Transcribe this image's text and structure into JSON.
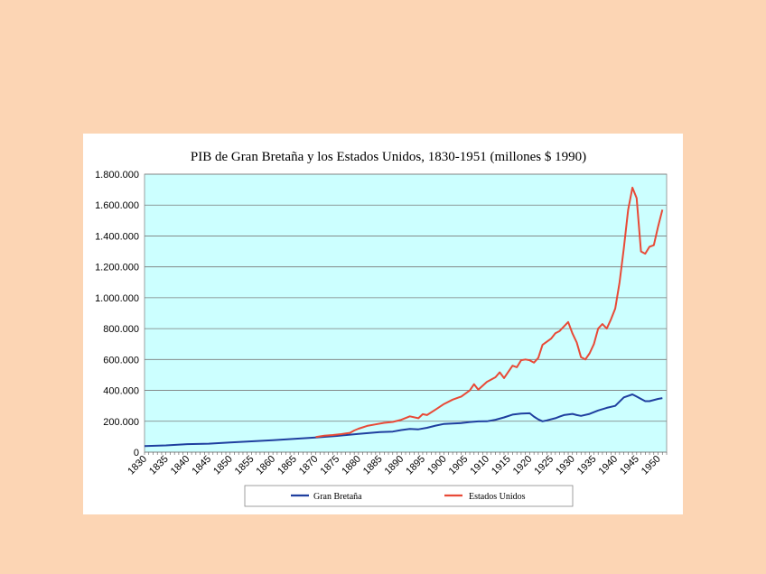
{
  "chart_data": {
    "type": "line",
    "title": "PIB de Gran Bretaña y los Estados Unidos, 1830-1951 (millones $ 1990)",
    "xlabel": "",
    "ylabel": "",
    "xlim": [
      1830,
      1952
    ],
    "ylim": [
      0,
      1800000
    ],
    "y_ticks": [
      0,
      200000,
      400000,
      600000,
      800000,
      1000000,
      1200000,
      1400000,
      1600000,
      1800000
    ],
    "y_tick_labels": [
      "0",
      "200.000",
      "400.000",
      "600.000",
      "800.000",
      "1.000.000",
      "1.200.000",
      "1.400.000",
      "1.600.000",
      "1.800.000"
    ],
    "x_tick_labels": [
      "1830",
      "1835",
      "1840",
      "1845",
      "1850",
      "1855",
      "1860",
      "1865",
      "1870",
      "1875",
      "1880",
      "1885",
      "1890",
      "1895",
      "1900",
      "1905",
      "1910",
      "1915",
      "1920",
      "1925",
      "1930",
      "1935",
      "1940",
      "1945",
      "1950"
    ],
    "grid": true,
    "plot_background": "#ccffff",
    "legend_position": "bottom",
    "series": [
      {
        "name": "Gran Bretaña",
        "color": "#1f3f9f",
        "x": [
          1830,
          1835,
          1840,
          1845,
          1850,
          1855,
          1860,
          1865,
          1870,
          1875,
          1880,
          1885,
          1888,
          1890,
          1892,
          1894,
          1896,
          1898,
          1900,
          1902,
          1904,
          1906,
          1908,
          1910,
          1912,
          1914,
          1916,
          1918,
          1920,
          1921,
          1922,
          1923,
          1924,
          1926,
          1927,
          1928,
          1930,
          1931,
          1932,
          1934,
          1936,
          1938,
          1940,
          1942,
          1944,
          1945,
          1946,
          1947,
          1948,
          1950,
          1951
        ],
        "values": [
          40000,
          44000,
          52000,
          55000,
          63000,
          70000,
          78000,
          86000,
          95000,
          105000,
          118000,
          130000,
          133000,
          143000,
          150000,
          148000,
          158000,
          172000,
          183000,
          185000,
          188000,
          195000,
          199000,
          200000,
          210000,
          225000,
          243000,
          250000,
          252000,
          230000,
          212000,
          200000,
          206000,
          220000,
          230000,
          240000,
          248000,
          240000,
          235000,
          248000,
          270000,
          287000,
          300000,
          355000,
          374000,
          360000,
          345000,
          330000,
          330000,
          345000,
          350000
        ]
      },
      {
        "name": "Estados Unidos",
        "color": "#e84a37",
        "x": [
          1870,
          1872,
          1874,
          1876,
          1878,
          1879,
          1880,
          1882,
          1884,
          1886,
          1888,
          1890,
          1892,
          1894,
          1895,
          1896,
          1898,
          1900,
          1902,
          1904,
          1906,
          1907,
          1908,
          1910,
          1912,
          1913,
          1914,
          1916,
          1917,
          1918,
          1919,
          1920,
          1921,
          1922,
          1923,
          1925,
          1926,
          1927,
          1929,
          1930,
          1931,
          1932,
          1933,
          1934,
          1935,
          1936,
          1937,
          1938,
          1939,
          1940,
          1941,
          1942,
          1943,
          1944,
          1945,
          1946,
          1947,
          1948,
          1949,
          1950,
          1951
        ],
        "values": [
          98000,
          107000,
          111000,
          117000,
          125000,
          140000,
          152000,
          170000,
          180000,
          190000,
          196000,
          210000,
          232000,
          220000,
          246000,
          240000,
          276000,
          312000,
          340000,
          360000,
          400000,
          440000,
          405000,
          455000,
          485000,
          517000,
          480000,
          560000,
          550000,
          595000,
          600000,
          595000,
          580000,
          610000,
          695000,
          735000,
          770000,
          785000,
          843000,
          768000,
          710000,
          615000,
          600000,
          640000,
          700000,
          800000,
          830000,
          800000,
          860000,
          930000,
          1100000,
          1320000,
          1570000,
          1713000,
          1645000,
          1300000,
          1285000,
          1330000,
          1340000,
          1460000,
          1570000
        ]
      }
    ]
  }
}
